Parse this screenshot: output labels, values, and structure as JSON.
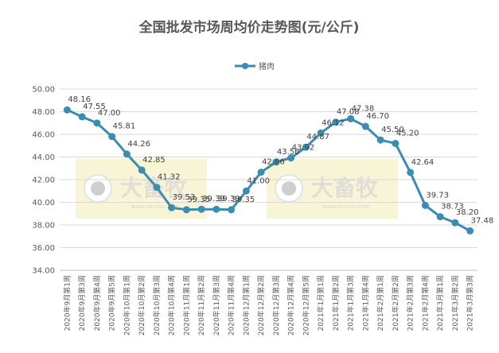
{
  "chart_data": {
    "type": "line",
    "title": "全国批发市场周均价走势图(元/公斤)",
    "legend_position": "top",
    "grid": true,
    "ylim": [
      34.0,
      50.0
    ],
    "ytick_step": 2.0,
    "yticks": [
      "34.00",
      "36.00",
      "38.00",
      "40.00",
      "42.00",
      "44.00",
      "46.00",
      "48.00",
      "50.00"
    ],
    "categories": [
      "2020年9月第1周",
      "2020年9月第3周",
      "2020年9月第4周",
      "2020年9月第5周",
      "2020年10月第1周",
      "2020年10月第2周",
      "2020年10月第3周",
      "2020年10月第4周",
      "2020年11月第1周",
      "2020年11月第2周",
      "2020年11月第3周",
      "2020年11月第4周",
      "2020年12月第1周",
      "2020年12月第2周",
      "2020年12月第3周",
      "2020年12月第4周",
      "2020年12月第5周",
      "2021年1月第1周",
      "2021年1月第2周",
      "2021年1月第3周",
      "2021年1月第4周",
      "2021年2月第1周",
      "2021年2月第2周",
      "2021年2月第3周",
      "2021年2月第4周",
      "2021年3月第1周",
      "2021年3月第2周",
      "2021年3月第3周"
    ],
    "series": [
      {
        "name": "猪肉",
        "color": "#3A8DB0",
        "values": [
          48.16,
          47.55,
          47.0,
          45.81,
          44.26,
          42.85,
          41.32,
          39.53,
          39.35,
          39.39,
          39.39,
          39.35,
          41.0,
          42.66,
          43.56,
          43.92,
          44.87,
          46.12,
          47.08,
          47.38,
          46.7,
          45.5,
          45.2,
          42.64,
          39.73,
          38.73,
          38.2,
          37.48
        ],
        "labels": [
          "48.16",
          "47.55",
          "47.00",
          "45.81",
          "44.26",
          "42.85",
          "41.32",
          "39.53",
          "39.35",
          "39.39",
          "39.39",
          "39.35",
          "41.00",
          "42.66",
          "43.56",
          "43.92",
          "44.87",
          "46.12",
          "47.08",
          "47.38",
          "46.70",
          "45.50",
          "45.20",
          "42.64",
          "39.73",
          "38.73",
          "38.20",
          "37.48"
        ]
      }
    ],
    "watermark": {
      "text": "大畜牧",
      "subtext": "www.dxumu.com"
    }
  }
}
